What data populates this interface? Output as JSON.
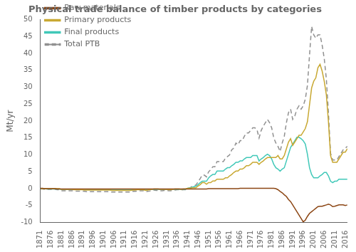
{
  "chart_data": {
    "type": "line",
    "title": "Physical trade balance of timber products by categories",
    "y_label": "Mt/yr",
    "xlim": [
      1871,
      2017
    ],
    "ylim": [
      -10,
      50
    ],
    "xticks": [
      1871,
      1876,
      1881,
      1886,
      1891,
      1896,
      1901,
      1906,
      1911,
      1916,
      1921,
      1926,
      1931,
      1936,
      1941,
      1946,
      1951,
      1956,
      1961,
      1966,
      1971,
      1976,
      1981,
      1986,
      1991,
      1996,
      2001,
      2006,
      2011,
      2016
    ],
    "yticks": [
      -10,
      -5,
      0,
      5,
      10,
      15,
      20,
      25,
      30,
      35,
      40,
      45,
      50
    ],
    "grid": false,
    "legend": "upper left",
    "x": [
      1871,
      1872,
      1873,
      1874,
      1875,
      1876,
      1877,
      1878,
      1879,
      1880,
      1881,
      1882,
      1883,
      1884,
      1885,
      1886,
      1887,
      1888,
      1889,
      1890,
      1891,
      1892,
      1893,
      1894,
      1895,
      1896,
      1897,
      1898,
      1899,
      1900,
      1901,
      1902,
      1903,
      1904,
      1905,
      1906,
      1907,
      1908,
      1909,
      1910,
      1911,
      1912,
      1913,
      1914,
      1915,
      1916,
      1917,
      1918,
      1919,
      1920,
      1921,
      1922,
      1923,
      1924,
      1925,
      1926,
      1927,
      1928,
      1929,
      1930,
      1931,
      1932,
      1933,
      1934,
      1935,
      1936,
      1937,
      1938,
      1939,
      1940,
      1941,
      1942,
      1943,
      1944,
      1945,
      1946,
      1947,
      1948,
      1949,
      1950,
      1951,
      1952,
      1953,
      1954,
      1955,
      1956,
      1957,
      1958,
      1959,
      1960,
      1961,
      1962,
      1963,
      1964,
      1965,
      1966,
      1967,
      1968,
      1969,
      1970,
      1971,
      1972,
      1973,
      1974,
      1975,
      1976,
      1977,
      1978,
      1979,
      1980,
      1981,
      1982,
      1983,
      1984,
      1985,
      1986,
      1987,
      1988,
      1989,
      1990,
      1991,
      1992,
      1993,
      1994,
      1995,
      1996,
      1997,
      1998,
      1999,
      2000,
      2001,
      2002,
      2003,
      2004,
      2005,
      2006,
      2007,
      2008,
      2009,
      2010,
      2011,
      2012,
      2013,
      2014,
      2015,
      2016,
      2017
    ],
    "series": [
      {
        "name": "Raw materials",
        "color": "#8B4513",
        "line_style": "solid",
        "values": [
          0.1,
          0.1,
          0.0,
          0.0,
          0.0,
          0.0,
          0.0,
          0.0,
          -0.1,
          -0.1,
          -0.1,
          -0.1,
          -0.1,
          -0.1,
          -0.1,
          -0.1,
          -0.1,
          -0.1,
          -0.1,
          -0.1,
          -0.1,
          -0.1,
          -0.1,
          -0.1,
          -0.1,
          -0.1,
          -0.1,
          -0.1,
          -0.1,
          -0.1,
          -0.1,
          -0.1,
          -0.1,
          -0.1,
          -0.1,
          -0.1,
          -0.1,
          -0.1,
          -0.1,
          -0.1,
          -0.1,
          -0.1,
          -0.1,
          -0.1,
          -0.1,
          -0.1,
          -0.1,
          -0.1,
          -0.1,
          -0.1,
          -0.1,
          -0.1,
          -0.1,
          -0.1,
          -0.1,
          -0.1,
          -0.1,
          -0.1,
          -0.1,
          -0.1,
          -0.1,
          -0.1,
          -0.1,
          -0.1,
          -0.1,
          -0.1,
          -0.1,
          -0.1,
          -0.1,
          -0.1,
          -0.1,
          -0.1,
          -0.1,
          -0.1,
          -0.1,
          -0.1,
          -0.1,
          -0.1,
          -0.1,
          -0.1,
          0.0,
          0.0,
          0.0,
          0.0,
          0.0,
          0.0,
          0.0,
          0.0,
          0.0,
          0.0,
          0.0,
          0.0,
          0.0,
          0.0,
          0.0,
          0.1,
          0.1,
          0.1,
          0.1,
          0.1,
          0.1,
          0.1,
          0.1,
          0.1,
          0.1,
          0.1,
          0.1,
          0.1,
          0.1,
          0.1,
          0.1,
          0.1,
          0.0,
          -0.3,
          -0.8,
          -1.2,
          -1.8,
          -2.3,
          -3.2,
          -3.8,
          -4.8,
          -5.8,
          -6.8,
          -7.8,
          -8.8,
          -9.8,
          -9.3,
          -8.2,
          -7.3,
          -6.8,
          -6.3,
          -5.8,
          -5.3,
          -5.2,
          -5.2,
          -5.0,
          -4.8,
          -4.6,
          -4.8,
          -5.3,
          -5.2,
          -5.0,
          -4.8,
          -4.8,
          -4.8,
          -5.0,
          -4.8
        ]
      },
      {
        "name": "Primary products",
        "color": "#C8A832",
        "line_style": "solid",
        "values": [
          0.0,
          0.0,
          0.0,
          0.0,
          0.0,
          0.0,
          0.0,
          0.0,
          0.0,
          0.0,
          -0.2,
          -0.2,
          -0.2,
          -0.2,
          -0.2,
          -0.2,
          -0.3,
          -0.3,
          -0.3,
          -0.3,
          -0.3,
          -0.4,
          -0.4,
          -0.4,
          -0.4,
          -0.4,
          -0.4,
          -0.4,
          -0.4,
          -0.4,
          -0.4,
          -0.4,
          -0.4,
          -0.4,
          -0.5,
          -0.5,
          -0.5,
          -0.5,
          -0.5,
          -0.5,
          -0.5,
          -0.5,
          -0.5,
          -0.5,
          -0.4,
          -0.4,
          -0.3,
          -0.3,
          -0.3,
          -0.3,
          -0.5,
          -0.4,
          -0.3,
          -0.2,
          -0.1,
          -0.1,
          -0.1,
          -0.2,
          -0.2,
          -0.2,
          -0.2,
          -0.3,
          -0.3,
          -0.2,
          -0.1,
          -0.1,
          -0.1,
          -0.2,
          -0.1,
          -0.1,
          0.1,
          0.1,
          0.2,
          0.3,
          0.3,
          0.8,
          1.2,
          1.8,
          1.8,
          1.3,
          1.8,
          1.8,
          2.3,
          2.3,
          2.8,
          2.8,
          2.8,
          2.8,
          3.2,
          3.2,
          3.8,
          4.2,
          4.8,
          5.2,
          5.2,
          5.8,
          5.8,
          6.2,
          6.8,
          6.8,
          7.2,
          7.8,
          7.8,
          7.8,
          7.2,
          7.8,
          8.2,
          8.8,
          9.2,
          9.2,
          9.2,
          9.2,
          9.2,
          9.8,
          8.8,
          8.8,
          9.8,
          11.8,
          13.8,
          14.8,
          12.8,
          13.8,
          14.8,
          15.8,
          15.8,
          16.8,
          17.8,
          19.8,
          24.8,
          29.8,
          31.8,
          32.8,
          35.8,
          36.8,
          34.8,
          31.8,
          27.8,
          19.8,
          9.8,
          7.8,
          7.8,
          7.8,
          8.8,
          9.8,
          10.8,
          10.8,
          11.8
        ]
      },
      {
        "name": "Final products",
        "color": "#40C8B8",
        "line_style": "solid",
        "values": [
          0.0,
          0.0,
          0.0,
          -0.1,
          -0.1,
          -0.1,
          -0.1,
          -0.1,
          -0.1,
          -0.1,
          -0.2,
          -0.2,
          -0.2,
          -0.2,
          -0.2,
          -0.2,
          -0.2,
          -0.2,
          -0.2,
          -0.2,
          -0.2,
          -0.2,
          -0.2,
          -0.2,
          -0.2,
          -0.2,
          -0.2,
          -0.2,
          -0.2,
          -0.2,
          -0.2,
          -0.2,
          -0.2,
          -0.2,
          -0.2,
          -0.2,
          -0.2,
          -0.2,
          -0.2,
          -0.2,
          -0.2,
          -0.2,
          -0.2,
          -0.2,
          -0.2,
          -0.2,
          -0.2,
          -0.2,
          -0.2,
          -0.2,
          -0.2,
          -0.2,
          -0.2,
          -0.2,
          -0.2,
          -0.2,
          -0.2,
          -0.2,
          -0.2,
          -0.2,
          -0.2,
          -0.2,
          -0.2,
          -0.2,
          -0.2,
          -0.2,
          -0.2,
          -0.2,
          -0.2,
          -0.2,
          0.1,
          0.2,
          0.4,
          0.6,
          0.8,
          1.2,
          1.8,
          2.2,
          2.2,
          2.2,
          3.2,
          3.8,
          4.2,
          4.2,
          5.2,
          5.2,
          5.2,
          5.2,
          5.8,
          6.2,
          6.2,
          6.8,
          7.2,
          7.8,
          7.8,
          8.2,
          8.2,
          8.8,
          9.2,
          9.2,
          9.2,
          9.8,
          9.8,
          9.8,
          8.2,
          8.8,
          9.2,
          9.8,
          10.2,
          9.8,
          8.8,
          7.2,
          6.2,
          5.8,
          5.2,
          5.8,
          6.2,
          8.2,
          10.2,
          12.2,
          13.2,
          14.2,
          15.2,
          15.2,
          14.8,
          14.2,
          13.2,
          10.2,
          6.2,
          4.2,
          3.2,
          3.2,
          3.2,
          3.8,
          4.2,
          4.8,
          4.8,
          3.8,
          2.2,
          1.8,
          2.2,
          2.2,
          2.8,
          2.8,
          2.8,
          2.8,
          2.8
        ]
      },
      {
        "name": "Total PTB",
        "color": "#909090",
        "line_style": "dashed",
        "values": [
          -0.1,
          -0.1,
          -0.2,
          -0.2,
          -0.2,
          -0.2,
          -0.2,
          -0.2,
          -0.3,
          -0.3,
          -0.6,
          -0.6,
          -0.6,
          -0.6,
          -0.6,
          -0.6,
          -0.7,
          -0.7,
          -0.7,
          -0.7,
          -0.7,
          -0.8,
          -0.9,
          -0.9,
          -0.9,
          -0.9,
          -0.9,
          -0.9,
          -0.9,
          -0.9,
          -0.9,
          -0.9,
          -0.9,
          -0.9,
          -1.0,
          -1.0,
          -1.0,
          -1.0,
          -1.0,
          -1.0,
          -1.0,
          -1.0,
          -1.0,
          -1.0,
          -0.8,
          -0.8,
          -0.7,
          -0.6,
          -0.6,
          -0.6,
          -0.9,
          -0.8,
          -0.7,
          -0.5,
          -0.4,
          -0.5,
          -0.5,
          -0.6,
          -0.6,
          -0.5,
          -0.5,
          -0.6,
          -0.6,
          -0.5,
          -0.4,
          -0.3,
          -0.3,
          -0.4,
          -0.3,
          -0.3,
          0.1,
          0.2,
          0.6,
          0.9,
          1.1,
          2.0,
          3.0,
          4.0,
          4.0,
          3.5,
          5.0,
          5.6,
          6.5,
          6.5,
          8.0,
          8.0,
          8.0,
          8.0,
          9.0,
          9.5,
          10.0,
          11.5,
          12.0,
          13.5,
          13.0,
          14.2,
          14.2,
          15.5,
          16.5,
          16.5,
          17.2,
          18.0,
          18.0,
          17.5,
          15.0,
          17.2,
          18.5,
          19.5,
          20.5,
          19.5,
          18.0,
          15.0,
          13.5,
          12.5,
          11.0,
          13.5,
          15.5,
          19.5,
          22.5,
          23.5,
          20.5,
          21.5,
          23.5,
          24.5,
          23.5,
          24.5,
          26.5,
          30.5,
          39.5,
          48.0,
          45.5,
          44.5,
          45.5,
          45.5,
          42.5,
          38.5,
          32.5,
          22.5,
          10.5,
          8.5,
          8.5,
          8.5,
          9.5,
          10.5,
          11.5,
          12.0,
          12.5
        ]
      }
    ]
  }
}
